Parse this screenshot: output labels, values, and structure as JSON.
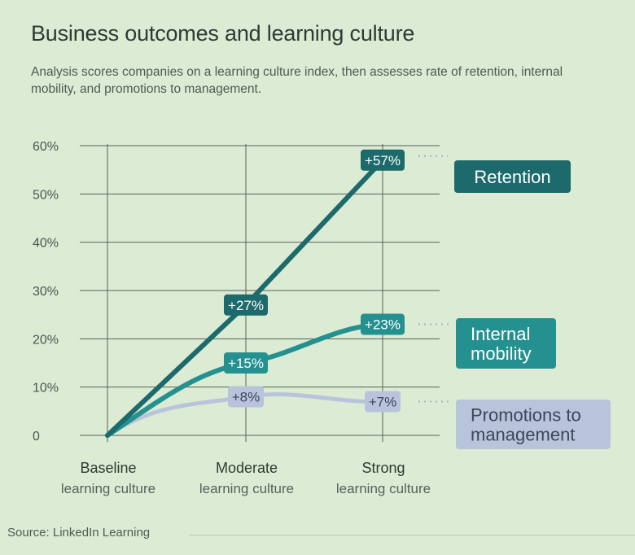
{
  "title": "Business outcomes and learning culture",
  "subtitle": "Analysis scores companies on a learning culture index, then assesses rate of retention, internal mobility, and promotions to management.",
  "source": "Source: LinkedIn Learning",
  "colors": {
    "background": "#dcebd3",
    "grid": "#55605c",
    "retention": "#1c6a6c",
    "mobility": "#249190",
    "promotions": "#b8c4dc",
    "promotions_text": "#3c4657"
  },
  "chart_data": {
    "type": "line",
    "title": "Business outcomes and learning culture",
    "categories": [
      [
        "Baseline",
        "learning culture"
      ],
      [
        "Moderate",
        "learning culture"
      ],
      [
        "Strong",
        "learning culture"
      ]
    ],
    "y_ticks": [
      "0",
      "10%",
      "20%",
      "30%",
      "40%",
      "50%",
      "60%"
    ],
    "ylim": [
      0,
      60
    ],
    "grid": true,
    "legend_placement": "right, end-of-line labels",
    "series": [
      {
        "name": "Retention",
        "name_lines": [
          "Retention"
        ],
        "values": [
          0,
          27,
          57
        ],
        "labels": [
          "",
          "+27%",
          "+57%"
        ]
      },
      {
        "name": "Internal mobility",
        "name_lines": [
          "Internal",
          "mobility"
        ],
        "values": [
          0,
          15,
          23
        ],
        "labels": [
          "",
          "+15%",
          "+23%"
        ]
      },
      {
        "name": "Promotions to management",
        "name_lines": [
          "Promotions to",
          "management"
        ],
        "values": [
          0,
          8,
          7
        ],
        "labels": [
          "",
          "+8%",
          "+7%"
        ]
      }
    ]
  }
}
